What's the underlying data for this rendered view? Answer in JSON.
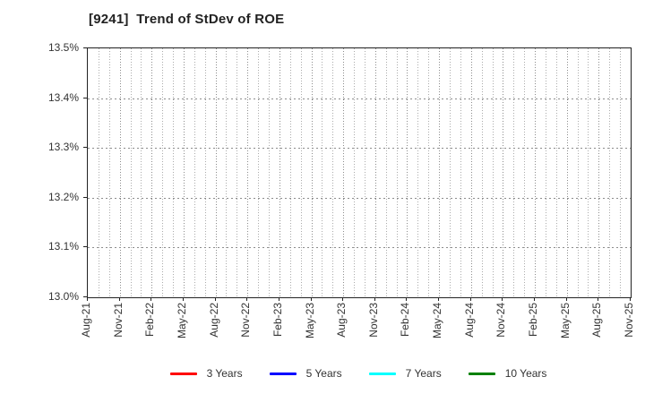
{
  "chart": {
    "title": "[9241]  Trend of StDev of ROE"
  },
  "chart_data": {
    "type": "line",
    "title": "[9241]  Trend of StDev of ROE",
    "x_tick_labels": [
      "Aug-21",
      "Nov-21",
      "Feb-22",
      "May-22",
      "Aug-22",
      "Nov-22",
      "Feb-23",
      "May-23",
      "Aug-23",
      "Nov-23",
      "Feb-24",
      "May-24",
      "Aug-24",
      "Nov-24",
      "Feb-25",
      "May-25",
      "Aug-25",
      "Nov-25"
    ],
    "x_total_points": 52,
    "x_months_between_labels": 3,
    "y_tick_labels": [
      "13.0%",
      "13.1%",
      "13.2%",
      "13.3%",
      "13.4%",
      "13.5%"
    ],
    "ylim": [
      13.0,
      13.5
    ],
    "y_tick_step": 0.1,
    "grid": true,
    "grid_style": "dotted",
    "legend_position": "bottom",
    "series": [
      {
        "name": "3 Years",
        "color": "#ff0000",
        "values": []
      },
      {
        "name": "5 Years",
        "color": "#0000ff",
        "values": []
      },
      {
        "name": "7 Years",
        "color": "#00ffff",
        "values": []
      },
      {
        "name": "10 Years",
        "color": "#008000",
        "values": []
      }
    ],
    "no_data_lines_visible": true
  },
  "colors": {
    "background": "#ffffff",
    "axis_border": "#222222",
    "grid_major": "#8c8c8c",
    "grid_minor": "#ababab",
    "tick_text": "#333333",
    "title_text": "#222222",
    "legend_text": "#333333"
  }
}
